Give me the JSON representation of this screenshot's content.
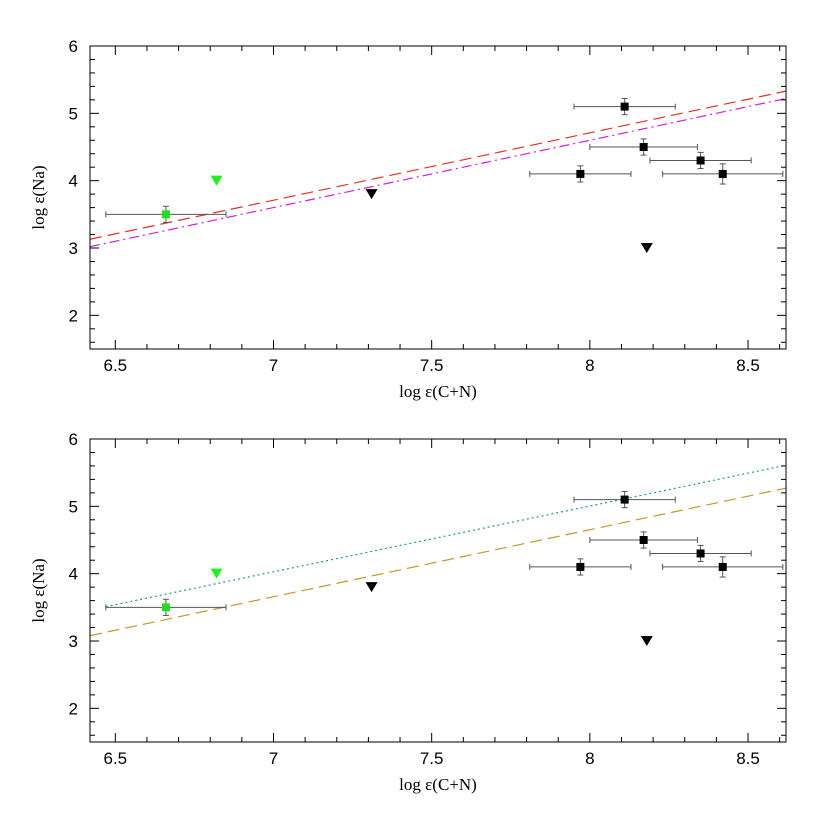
{
  "chart_data": [
    {
      "type": "scatter",
      "xlabel": "log ε(C+N)",
      "ylabel": "log ε(Na)",
      "xlim": [
        6.42,
        8.62
      ],
      "ylim": [
        1.5,
        6.0
      ],
      "x_ticks": [
        6.5,
        7,
        7.5,
        8,
        8.5
      ],
      "x_tick_labels": [
        "6.5",
        "7",
        "7.5",
        "8",
        "8.5"
      ],
      "y_ticks": [
        2,
        3,
        4,
        5,
        6
      ],
      "y_tick_labels": [
        "2",
        "3",
        "4",
        "5",
        "6"
      ],
      "grid": false,
      "legend": "none",
      "series": [
        {
          "marker": "square",
          "color": "#000000",
          "points": [
            {
              "x": 8.11,
              "y": 5.1,
              "xerr": 0.16,
              "yerr": 0.12
            },
            {
              "x": 8.17,
              "y": 4.5,
              "xerr": 0.17,
              "yerr": 0.12
            },
            {
              "x": 8.35,
              "y": 4.3,
              "xerr": 0.16,
              "yerr": 0.12
            },
            {
              "x": 7.97,
              "y": 4.1,
              "xerr": 0.16,
              "yerr": 0.12
            },
            {
              "x": 8.42,
              "y": 4.1,
              "xerr": 0.19,
              "yerr": 0.15
            }
          ]
        },
        {
          "marker": "square",
          "color": "#22dd22",
          "points": [
            {
              "x": 6.66,
              "y": 3.5,
              "xerr": 0.19,
              "yerr": 0.12
            }
          ]
        },
        {
          "marker": "triangle-down",
          "color": "#000000",
          "points": [
            {
              "x": 7.31,
              "y": 3.8
            },
            {
              "x": 8.18,
              "y": 3.0
            }
          ]
        },
        {
          "marker": "triangle-down",
          "color": "#22ee22",
          "points": [
            {
              "x": 6.82,
              "y": 4.0
            }
          ]
        }
      ],
      "lines": [
        {
          "x": [
            6.42,
            8.62
          ],
          "y": [
            3.13,
            5.33
          ],
          "color": "#e0302a",
          "dash": "dashed"
        },
        {
          "x": [
            6.42,
            8.62
          ],
          "y": [
            3.02,
            5.22
          ],
          "color": "#cc22dd",
          "dash": "dash-dot"
        }
      ]
    },
    {
      "type": "scatter",
      "xlabel": "log ε(C+N)",
      "ylabel": "log ε(Na)",
      "xlim": [
        6.42,
        8.62
      ],
      "ylim": [
        1.5,
        6.0
      ],
      "x_ticks": [
        6.5,
        7,
        7.5,
        8,
        8.5
      ],
      "x_tick_labels": [
        "6.5",
        "7",
        "7.5",
        "8",
        "8.5"
      ],
      "y_ticks": [
        2,
        3,
        4,
        5,
        6
      ],
      "y_tick_labels": [
        "2",
        "3",
        "4",
        "5",
        "6"
      ],
      "grid": false,
      "legend": "none",
      "series": [
        {
          "marker": "square",
          "color": "#000000",
          "points": [
            {
              "x": 8.11,
              "y": 5.1,
              "xerr": 0.16,
              "yerr": 0.12
            },
            {
              "x": 8.17,
              "y": 4.5,
              "xerr": 0.17,
              "yerr": 0.12
            },
            {
              "x": 8.35,
              "y": 4.3,
              "xerr": 0.16,
              "yerr": 0.12
            },
            {
              "x": 7.97,
              "y": 4.1,
              "xerr": 0.16,
              "yerr": 0.12
            },
            {
              "x": 8.42,
              "y": 4.1,
              "xerr": 0.19,
              "yerr": 0.15
            }
          ]
        },
        {
          "marker": "square",
          "color": "#22dd22",
          "points": [
            {
              "x": 6.66,
              "y": 3.5,
              "xerr": 0.19,
              "yerr": 0.12
            }
          ]
        },
        {
          "marker": "triangle-down",
          "color": "#000000",
          "points": [
            {
              "x": 7.31,
              "y": 3.8
            },
            {
              "x": 8.18,
              "y": 3.0
            }
          ]
        },
        {
          "marker": "triangle-down",
          "color": "#22ee22",
          "points": [
            {
              "x": 6.82,
              "y": 4.0
            }
          ]
        }
      ],
      "lines": [
        {
          "x": [
            6.47,
            8.62
          ],
          "y": [
            3.51,
            5.61
          ],
          "color": "#1a9a9a",
          "dash": "dotted"
        },
        {
          "x": [
            6.42,
            8.62
          ],
          "y": [
            3.08,
            5.27
          ],
          "color": "#c8962a",
          "dash": "dashed"
        }
      ]
    }
  ]
}
